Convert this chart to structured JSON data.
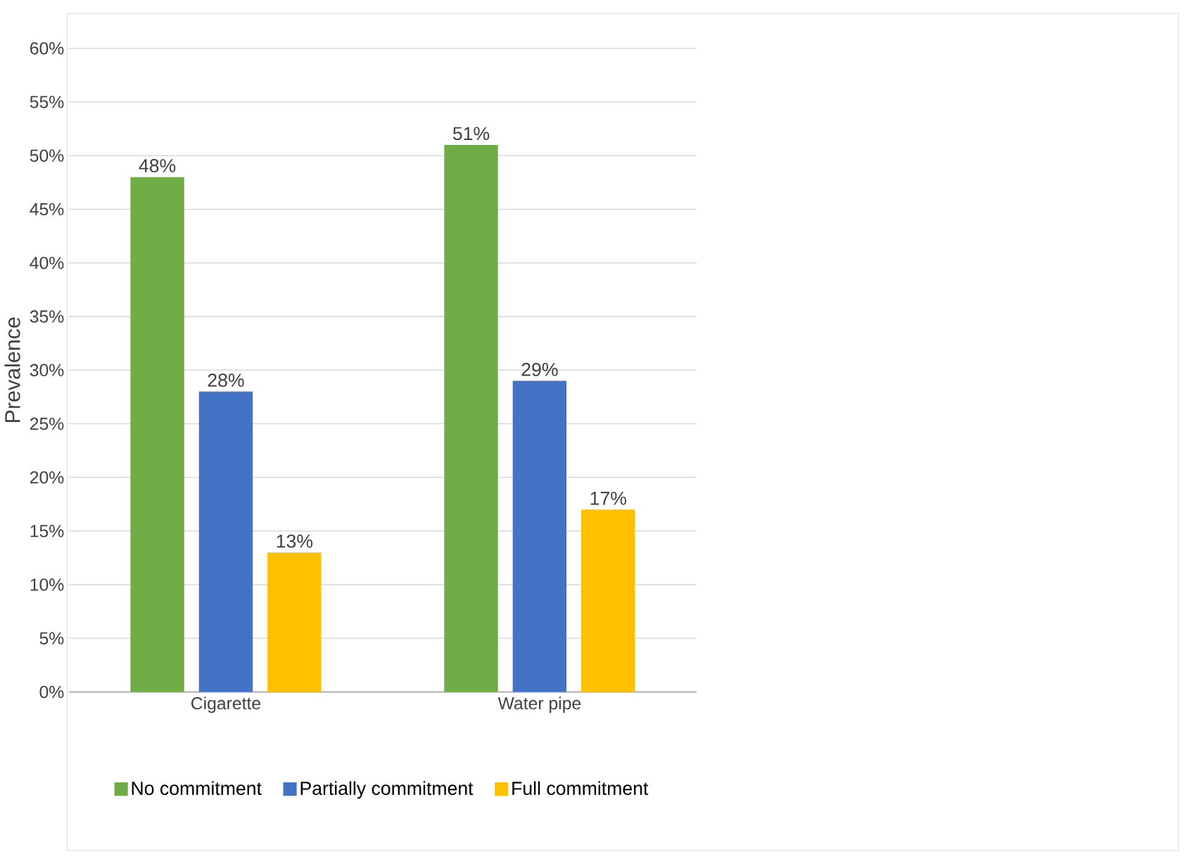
{
  "chart_data": {
    "type": "bar",
    "ylabel": "Prevalence",
    "categories": [
      "Cigarette",
      "Water pipe"
    ],
    "series": [
      {
        "name": "No commitment",
        "color": "#70ad47",
        "values": [
          48,
          51
        ],
        "value_labels": [
          "48%",
          "51%"
        ]
      },
      {
        "name": "Partially commitment",
        "color": "#4472c4",
        "values": [
          28,
          29
        ],
        "value_labels": [
          "28%",
          "29%"
        ]
      },
      {
        "name": "Full commitment",
        "color": "#ffc000",
        "values": [
          13,
          17
        ],
        "value_labels": [
          "13%",
          "17%"
        ]
      }
    ],
    "ylim": [
      0,
      60
    ],
    "yticks": [
      {
        "value": 0,
        "label": "0%"
      },
      {
        "value": 5,
        "label": "5%"
      },
      {
        "value": 10,
        "label": "10%"
      },
      {
        "value": 15,
        "label": "15%"
      },
      {
        "value": 20,
        "label": "20%"
      },
      {
        "value": 25,
        "label": "25%"
      },
      {
        "value": 30,
        "label": "30%"
      },
      {
        "value": 35,
        "label": "35%"
      },
      {
        "value": 40,
        "label": "40%"
      },
      {
        "value": 45,
        "label": "45%"
      },
      {
        "value": 50,
        "label": "50%"
      },
      {
        "value": 55,
        "label": "55%"
      },
      {
        "value": 60,
        "label": "60%"
      }
    ],
    "grid": "y",
    "legend": "bottom"
  }
}
